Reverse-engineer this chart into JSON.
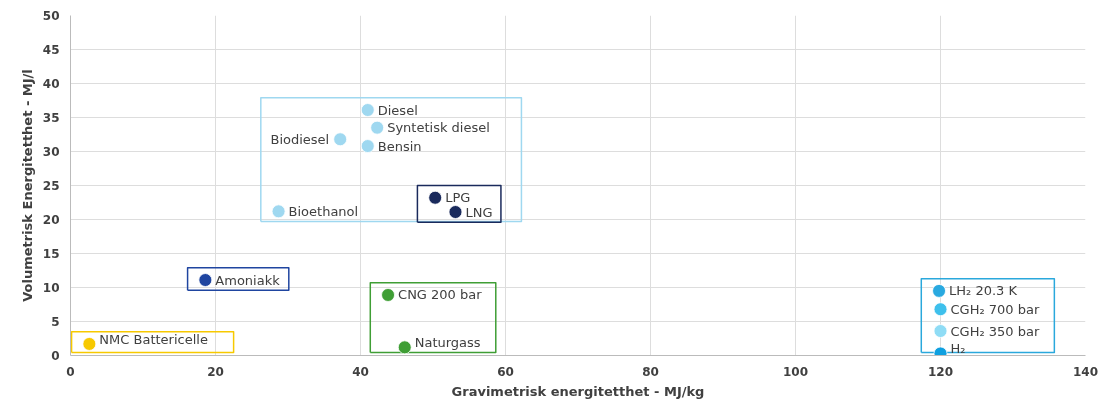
{
  "chart_data": {
    "type": "scatter",
    "xlabel": "Gravimetrisk energitetthet - MJ/kg",
    "ylabel": "Volumetrisk Energitetthet - MJ/l",
    "xlim": [
      0,
      140
    ],
    "ylim": [
      0,
      50
    ],
    "xticks": [
      0,
      20,
      40,
      60,
      80,
      100,
      120,
      140
    ],
    "yticks": [
      0,
      5,
      10,
      15,
      20,
      25,
      30,
      35,
      40,
      45,
      50
    ],
    "grid": true,
    "marker": "circle",
    "series": [
      {
        "color": "#9fd8f0",
        "x": [
          41.0,
          42.3,
          37.2,
          41.0,
          28.7
        ],
        "values": [
          36.1,
          33.5,
          31.8,
          30.8,
          21.2
        ]
      },
      {
        "color": "#1a2a5c",
        "x": [
          50.3,
          53.1
        ],
        "values": [
          23.2,
          21.1
        ]
      },
      {
        "color": "#1f45a0",
        "x": [
          18.6
        ],
        "values": [
          11.1
        ]
      },
      {
        "color": "#3f9e35",
        "x": [
          43.8,
          46.1
        ],
        "values": [
          8.9,
          1.2
        ]
      },
      {
        "color": "#f7c900",
        "x": [
          2.6
        ],
        "values": [
          1.7
        ]
      },
      {
        "color": "#2aa8dc",
        "x": [
          119.8,
          120.0,
          120.0,
          120.0
        ],
        "values": [
          9.5,
          6.8,
          3.6,
          0.3
        ],
        "colors": [
          "#29a9e0",
          "#3ec0ec",
          "#8fdcf5",
          "#0fa0e0"
        ]
      }
    ],
    "annotations": [
      {
        "text": "Diesel",
        "x": 41.0,
        "y": 36.1
      },
      {
        "text": "Syntetisk diesel",
        "x": 42.3,
        "y": 33.5
      },
      {
        "text": "Biodiesel",
        "x": 37.2,
        "y": 31.8
      },
      {
        "text": "Bensin",
        "x": 41.0,
        "y": 30.8
      },
      {
        "text": "Bioethanol",
        "x": 28.7,
        "y": 21.2
      },
      {
        "text": "LPG",
        "x": 50.3,
        "y": 23.2
      },
      {
        "text": "LNG",
        "x": 53.1,
        "y": 21.1
      },
      {
        "text": "Amoniakk",
        "x": 18.6,
        "y": 11.1
      },
      {
        "text": "CNG 200 bar",
        "x": 43.8,
        "y": 8.9
      },
      {
        "text": "Naturgass",
        "x": 46.1,
        "y": 1.2
      },
      {
        "text": "NMC Battericelle",
        "x": 2.6,
        "y": 1.7
      },
      {
        "text": "LH₂ 20.3 K",
        "x": 119.8,
        "y": 9.5
      },
      {
        "text": "CGH₂ 700 bar",
        "x": 120.0,
        "y": 6.8
      },
      {
        "text": "CGH₂ 350 bar",
        "x": 120.0,
        "y": 3.6
      },
      {
        "text": "H₂",
        "x": 120.0,
        "y": 0.3
      }
    ]
  }
}
